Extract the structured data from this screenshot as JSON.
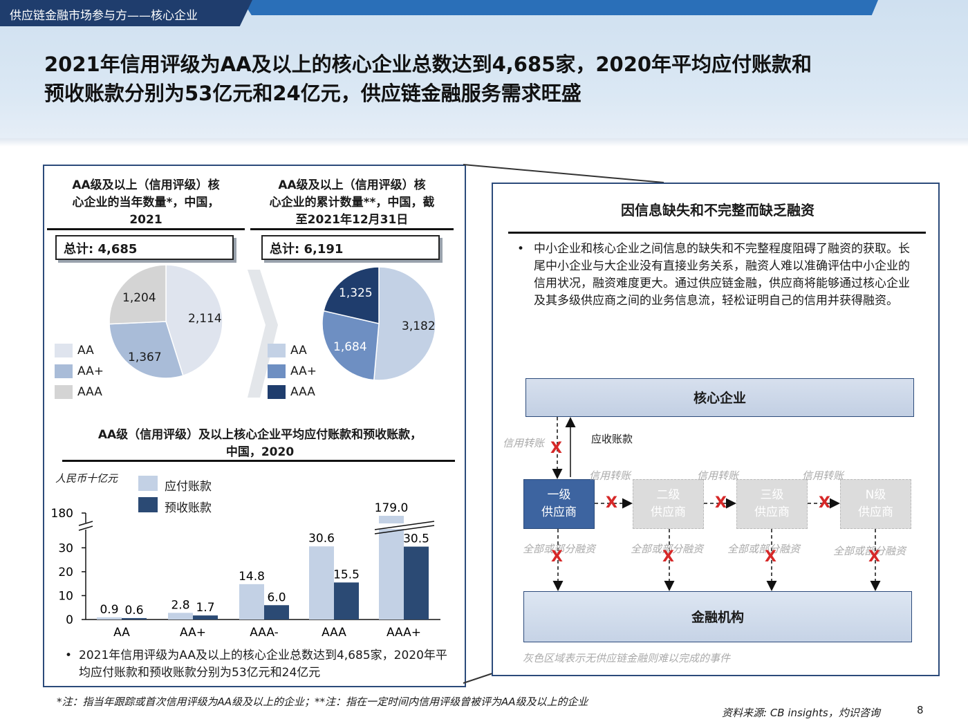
{
  "header": {
    "tab_label": "供应链金融市场参与方——核心企业",
    "title_line1": "2021年信用评级为AA及以上的核心企业总数达到4,685家，2020年平均应付账款和",
    "title_line2": "预收账款分别为53亿元和24亿元，供应链金融服务需求旺盛"
  },
  "left_panel": {
    "pie1": {
      "title_l1": "AA级及以上（信用评级）核",
      "title_l2": "心企业的当年数量*，中国，",
      "title_l3": "2021",
      "total": "总计: 4,685",
      "labels": {
        "aa": "2,114",
        "aa_plus": "1,367",
        "aaa": "1,204"
      }
    },
    "pie2": {
      "title_l1": "AA级及以上（信用评级）核",
      "title_l2": "心企业的累计数量**，中国，截",
      "title_l3": "至2021年12月31日",
      "total": "总计: 6,191",
      "labels": {
        "aa": "3,182",
        "aa_plus": "1,684",
        "aaa": "1,325"
      }
    },
    "legend": [
      "AA",
      "AA+",
      "AAA"
    ],
    "bar": {
      "title_l1": "AA级（信用评级）及以上核心企业平均应付账款和预收账款，",
      "title_l2": "中国，2020",
      "unit": "人民币十亿元",
      "legend": [
        "应付账款",
        "预收账款"
      ]
    },
    "bullet": "2021年信用评级为AA及以上的核心企业总数达到4,685家，2020年平均应付账款和预收账款分别为53亿元和24亿元"
  },
  "chart_data": [
    {
      "type": "pie",
      "title": "AA级及以上（信用评级）核心企业的当年数量*，中国，2021",
      "categories": [
        "AA",
        "AA+",
        "AAA"
      ],
      "values": [
        2114,
        1367,
        1204
      ],
      "colors": [
        "#dfe4ee",
        "#a9bcd8",
        "#d4d4d4"
      ]
    },
    {
      "type": "pie",
      "title": "AA级及以上（信用评级）核心企业的累计数量**，中国，截至2021年12月31日",
      "categories": [
        "AA",
        "AA+",
        "AAA"
      ],
      "values": [
        3182,
        1684,
        1325
      ],
      "colors": [
        "#c3d1e5",
        "#6e8fc2",
        "#1f3d6d"
      ]
    },
    {
      "type": "bar",
      "title": "AA级（信用评级）及以上核心企业平均应付账款和预收账款，中国，2020",
      "ylabel": "人民币十亿元",
      "categories": [
        "AA",
        "AA+",
        "AAA-",
        "AAA",
        "AAA+"
      ],
      "series": [
        {
          "name": "应付账款",
          "values": [
            0.9,
            2.8,
            14.8,
            30.6,
            179.0
          ],
          "labels": [
            "0.9",
            "2.8",
            "14.8",
            "30.6",
            "179.0"
          ],
          "color": "#c3d1e5"
        },
        {
          "name": "预收账款",
          "values": [
            0.6,
            1.7,
            6.0,
            15.5,
            30.5
          ],
          "labels": [
            "0.6",
            "1.7",
            "6.0",
            "15.5",
            "30.5"
          ],
          "color": "#2b4a74"
        }
      ],
      "yticks": [
        "0",
        "10",
        "20",
        "30",
        "180"
      ],
      "ylim": [
        0,
        35
      ],
      "axis_break": true
    }
  ],
  "right_panel": {
    "title": "因信息缺失和不完整而缺乏融资",
    "bullet": "中小企业和核心企业之间信息的缺失和不完整程度阻碍了融资的获取。长尾中小企业与大企业没有直接业务关系，融资人难以准确评估中小企业的信用状况，融资难度更大。通过供应链金融，供应商将能够通过核心企业及其多级供应商之间的业务信息流，轻松证明自己的信用并获得融资。",
    "core": "核心企业",
    "finance": "金融机构",
    "credit_transfer": "信用转账",
    "receivable": "应收账款",
    "suppliers": [
      {
        "l1": "一级",
        "l2": "供应商"
      },
      {
        "l1": "二级",
        "l2": "供应商"
      },
      {
        "l1": "三级",
        "l2": "供应商"
      },
      {
        "l1": "N级",
        "l2": "供应商"
      }
    ],
    "tier_links": [
      "信用转账",
      "信用转账",
      "信用转账"
    ],
    "finance_links": [
      "全部或部分融资",
      "全部或部分融资",
      "全部或部分融资",
      "全部或部分融资"
    ],
    "x_mark": "X",
    "note": "灰色区域表示无供应链金融则难以完成的事件"
  },
  "footer": {
    "note": "*注：指当年跟踪或首次信用评级为AA级及以上的企业；**注：指在一定时间内信用评级曾被评为AA级及以上的企业",
    "source": "资料来源: CB insights，灼识咨询",
    "page": "8"
  }
}
